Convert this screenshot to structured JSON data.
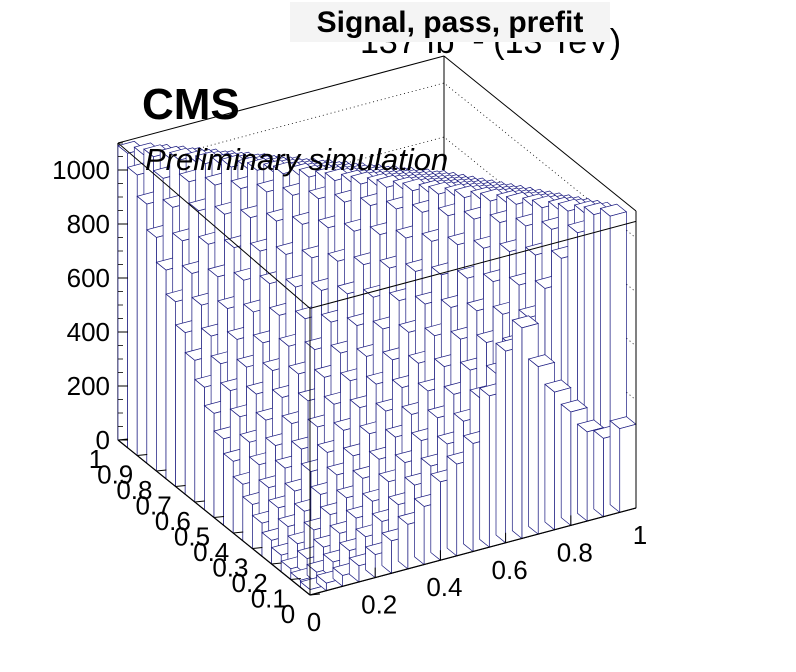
{
  "header": {
    "title": "Signal, pass, prefit",
    "lumi": "137 fb⁻¹ (13 TeV)",
    "experiment": "CMS",
    "subtitle": "Preliminary simulation"
  },
  "chart_data": {
    "type": "lego3d",
    "title": "Signal, pass, prefit",
    "x_ticks": [
      "0",
      "0.2",
      "0.4",
      "0.6",
      "0.8",
      "1"
    ],
    "y_ticks": [
      "0",
      "0.1",
      "0.2",
      "0.3",
      "0.4",
      "0.5",
      "0.6",
      "0.7",
      "0.8",
      "0.9",
      "1"
    ],
    "z_ticks": [
      "0",
      "200",
      "400",
      "600",
      "800",
      "1000"
    ],
    "xlim": [
      0,
      1
    ],
    "ylim": [
      0,
      1
    ],
    "zlim": [
      0,
      1100
    ],
    "x_bins": 20,
    "y_bins": 20,
    "front_row_heights": [
      20,
      28,
      40,
      60,
      85,
      120,
      165,
      215,
      290,
      340,
      400,
      560,
      710,
      780,
      620,
      510,
      420,
      330,
      290,
      310
    ],
    "diagonal_ridge_heights": [
      20,
      40,
      60,
      90,
      125,
      170,
      220,
      275,
      340,
      400,
      470,
      540,
      610,
      680,
      760,
      840,
      920,
      1000,
      1060,
      1090
    ],
    "colors": {
      "edge": "#1a1a80",
      "fill": "#ffffff",
      "frame": "#000000",
      "grid": "#000000",
      "title_bg": "#f4f4f4"
    }
  }
}
